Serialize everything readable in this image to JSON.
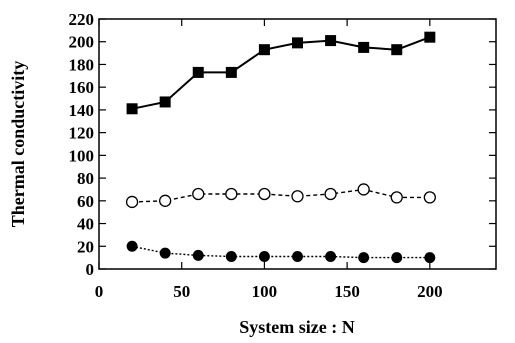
{
  "chart_data": {
    "type": "line",
    "xlabel": "System size : N",
    "ylabel": "Thermal conductivity",
    "xlim": [
      0,
      240
    ],
    "ylim": [
      0,
      220
    ],
    "x_ticks": [
      0,
      50,
      100,
      150,
      200
    ],
    "y_ticks": [
      0,
      20,
      40,
      60,
      80,
      100,
      120,
      140,
      160,
      180,
      200,
      220
    ],
    "grid": false,
    "legend": "none",
    "series": [
      {
        "marker": "filled-square",
        "line_style": "solid",
        "color": "#000000",
        "x": [
          20,
          40,
          60,
          80,
          100,
          120,
          140,
          160,
          180,
          200
        ],
        "y": [
          141,
          147,
          173,
          173,
          193,
          199,
          201,
          195,
          193,
          204
        ]
      },
      {
        "marker": "open-circle",
        "line_style": "dashed",
        "color": "#000000",
        "x": [
          20,
          40,
          60,
          80,
          100,
          120,
          140,
          160,
          180,
          200
        ],
        "y": [
          59,
          60,
          66,
          66,
          66,
          64,
          66,
          70,
          63,
          63
        ]
      },
      {
        "marker": "filled-circle",
        "line_style": "dotted",
        "color": "#000000",
        "x": [
          20,
          40,
          60,
          80,
          100,
          120,
          140,
          160,
          180,
          200
        ],
        "y": [
          20,
          14,
          12,
          11,
          11,
          11,
          11,
          10,
          10,
          10
        ]
      }
    ]
  }
}
